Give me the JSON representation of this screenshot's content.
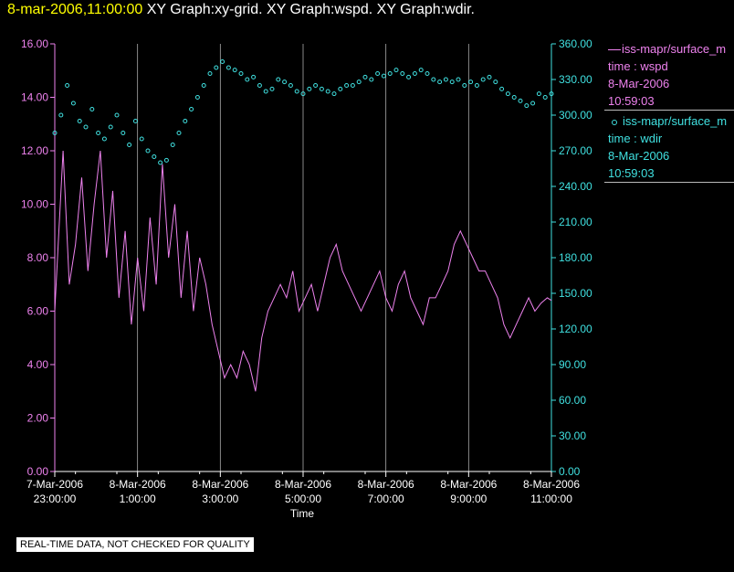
{
  "header": {
    "timestamp": "8-mar-2006,11:00:00",
    "titles": "XY Graph:xy-grid.  XY Graph:wspd.  XY Graph:wdir."
  },
  "legend": {
    "wspd": {
      "name": "iss-mapr/surface_m",
      "line2": "time : wspd",
      "line3": "8-Mar-2006",
      "line4": "10:59:03"
    },
    "wdir": {
      "name": "iss-mapr/surface_m",
      "line2": "time : wdir",
      "line3": "8-Mar-2006",
      "line4": "10:59:03"
    }
  },
  "disclaimer": "REAL-TIME DATA, NOT CHECKED FOR QUALITY",
  "colors": {
    "wspd": "#ee82ee",
    "wdir": "#40e0e0",
    "grid": "#aaaaaa",
    "axis": "#ffffff"
  },
  "chart_data": {
    "type": "line",
    "xlabel": "Time",
    "x_range_hours": [
      -1,
      11
    ],
    "x_ticks": [
      {
        "t": -1,
        "line1": "7-Mar-2006",
        "line2": "23:00:00"
      },
      {
        "t": 1,
        "line1": "8-Mar-2006",
        "line2": "1:00:00"
      },
      {
        "t": 3,
        "line1": "8-Mar-2006",
        "line2": "3:00:00"
      },
      {
        "t": 5,
        "line1": "8-Mar-2006",
        "line2": "5:00:00"
      },
      {
        "t": 7,
        "line1": "8-Mar-2006",
        "line2": "7:00:00"
      },
      {
        "t": 9,
        "line1": "8-Mar-2006",
        "line2": "9:00:00"
      },
      {
        "t": 11,
        "line1": "8-Mar-2006",
        "line2": "11:00:00"
      }
    ],
    "y_left": {
      "min": 0,
      "max": 16,
      "ticks": [
        "0.00",
        "2.00",
        "4.00",
        "6.00",
        "8.00",
        "10.00",
        "12.00",
        "14.00",
        "16.00"
      ]
    },
    "y_right": {
      "min": 0,
      "max": 360,
      "ticks": [
        "0.00",
        "30.00",
        "60.00",
        "90.00",
        "120.00",
        "150.00",
        "180.00",
        "210.00",
        "240.00",
        "270.00",
        "300.00",
        "330.00",
        "360.00"
      ]
    },
    "grid": "vertical",
    "series": [
      {
        "name": "iss-mapr/surface_m",
        "axis": "left",
        "style": "line",
        "t": [
          -1.0,
          -0.9,
          -0.8,
          -0.65,
          -0.5,
          -0.35,
          -0.2,
          -0.05,
          0.1,
          0.25,
          0.4,
          0.55,
          0.7,
          0.85,
          1.0,
          1.15,
          1.3,
          1.45,
          1.6,
          1.75,
          1.9,
          2.05,
          2.2,
          2.35,
          2.5,
          2.65,
          2.8,
          2.95,
          3.1,
          3.25,
          3.4,
          3.55,
          3.7,
          3.85,
          4.0,
          4.15,
          4.3,
          4.45,
          4.6,
          4.75,
          4.9,
          5.05,
          5.2,
          5.35,
          5.5,
          5.65,
          5.8,
          5.95,
          6.1,
          6.25,
          6.4,
          6.55,
          6.7,
          6.85,
          7.0,
          7.15,
          7.3,
          7.45,
          7.6,
          7.75,
          7.9,
          8.05,
          8.2,
          8.35,
          8.5,
          8.65,
          8.8,
          8.95,
          9.1,
          9.25,
          9.4,
          9.55,
          9.7,
          9.85,
          10.0,
          10.15,
          10.3,
          10.45,
          10.6,
          10.75,
          10.9,
          11.0
        ],
        "values": [
          6.0,
          9.0,
          12.0,
          7.0,
          8.5,
          11.0,
          7.5,
          10.0,
          12.0,
          8.0,
          10.5,
          6.5,
          9.0,
          5.5,
          8.0,
          6.0,
          9.5,
          7.0,
          11.5,
          8.0,
          10.0,
          6.5,
          9.0,
          6.0,
          8.0,
          7.0,
          5.5,
          4.5,
          3.5,
          4.0,
          3.5,
          4.5,
          4.0,
          3.0,
          5.0,
          6.0,
          6.5,
          7.0,
          6.5,
          7.5,
          6.0,
          6.5,
          7.0,
          6.0,
          7.0,
          8.0,
          8.5,
          7.5,
          7.0,
          6.5,
          6.0,
          6.5,
          7.0,
          7.5,
          6.5,
          6.0,
          7.0,
          7.5,
          6.5,
          6.0,
          5.5,
          6.5,
          6.5,
          7.0,
          7.5,
          8.5,
          9.0,
          8.5,
          8.0,
          7.5,
          7.5,
          7.0,
          6.5,
          5.5,
          5.0,
          5.5,
          6.0,
          6.5,
          6.0,
          6.3,
          6.5,
          6.4
        ]
      },
      {
        "name": "iss-mapr/surface_m",
        "axis": "right",
        "style": "scatter",
        "t": [
          -1.0,
          -0.85,
          -0.7,
          -0.55,
          -0.4,
          -0.25,
          -0.1,
          0.05,
          0.2,
          0.35,
          0.5,
          0.65,
          0.8,
          0.95,
          1.1,
          1.25,
          1.4,
          1.55,
          1.7,
          1.85,
          2.0,
          2.15,
          2.3,
          2.45,
          2.6,
          2.75,
          2.9,
          3.05,
          3.2,
          3.35,
          3.5,
          3.65,
          3.8,
          3.95,
          4.1,
          4.25,
          4.4,
          4.55,
          4.7,
          4.85,
          5.0,
          5.15,
          5.3,
          5.45,
          5.6,
          5.75,
          5.9,
          6.05,
          6.2,
          6.35,
          6.5,
          6.65,
          6.8,
          6.95,
          7.1,
          7.25,
          7.4,
          7.55,
          7.7,
          7.85,
          8.0,
          8.15,
          8.3,
          8.45,
          8.6,
          8.75,
          8.9,
          9.05,
          9.2,
          9.35,
          9.5,
          9.65,
          9.8,
          9.95,
          10.1,
          10.25,
          10.4,
          10.55,
          10.7,
          10.85,
          11.0
        ],
        "values": [
          285,
          300,
          325,
          310,
          295,
          290,
          305,
          285,
          280,
          290,
          300,
          285,
          275,
          295,
          280,
          270,
          265,
          260,
          262,
          275,
          285,
          295,
          305,
          315,
          325,
          335,
          340,
          345,
          340,
          338,
          335,
          330,
          332,
          325,
          320,
          322,
          330,
          328,
          325,
          320,
          318,
          322,
          325,
          322,
          320,
          318,
          322,
          325,
          325,
          328,
          332,
          330,
          335,
          333,
          335,
          338,
          335,
          332,
          335,
          338,
          335,
          330,
          328,
          330,
          328,
          330,
          325,
          328,
          325,
          330,
          332,
          328,
          322,
          318,
          315,
          312,
          308,
          310,
          318,
          315,
          318
        ]
      }
    ]
  }
}
